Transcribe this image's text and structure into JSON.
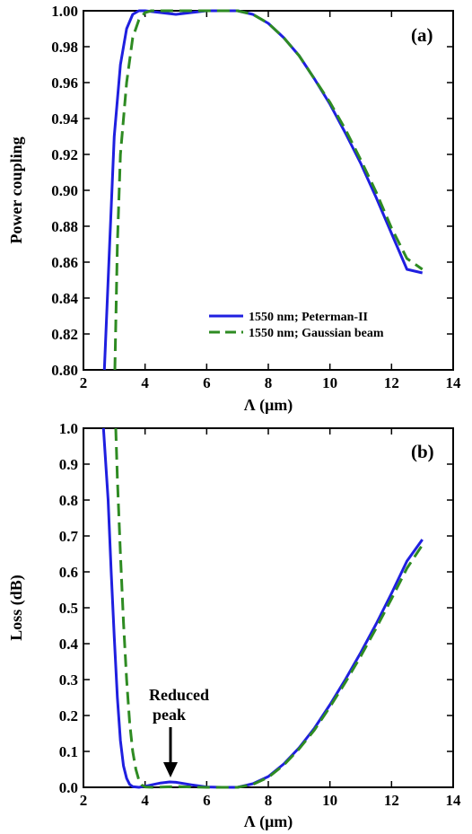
{
  "chart_data": [
    {
      "type": "line",
      "panel_label": "(a)",
      "xlabel": "Λ (μm)",
      "ylabel": "Power coupling",
      "xlim": [
        2,
        14
      ],
      "ylim": [
        0.8,
        1.0
      ],
      "x_ticks": [
        "2",
        "4",
        "6",
        "8",
        "10",
        "12",
        "14"
      ],
      "y_ticks": [
        "0.80",
        "0.82",
        "0.84",
        "0.86",
        "0.88",
        "0.90",
        "0.92",
        "0.94",
        "0.96",
        "0.98",
        "1.00"
      ],
      "grid": false,
      "legend_position": "bottom-right",
      "series": [
        {
          "name": "1550 nm; Peterman-II",
          "color": "#1f1fe0",
          "style": "solid",
          "x": [
            2.68,
            2.85,
            3.0,
            3.2,
            3.4,
            3.6,
            3.8,
            4.0,
            4.5,
            5.0,
            5.5,
            6.0,
            6.5,
            7.0,
            7.5,
            8.0,
            8.5,
            9.0,
            9.5,
            10.0,
            10.5,
            11.0,
            11.5,
            12.0,
            12.5,
            13.0
          ],
          "y": [
            0.8,
            0.87,
            0.93,
            0.97,
            0.99,
            0.998,
            1.0,
            1.0,
            0.999,
            0.998,
            0.999,
            1.0,
            1.0,
            1.0,
            0.998,
            0.993,
            0.985,
            0.975,
            0.962,
            0.948,
            0.932,
            0.915,
            0.896,
            0.876,
            0.856,
            0.854
          ]
        },
        {
          "name": "1550 nm; Gaussian beam",
          "color": "#2e8b22",
          "style": "dashed",
          "x": [
            3.02,
            3.1,
            3.2,
            3.4,
            3.6,
            3.8,
            4.0,
            4.2,
            4.5,
            5.0,
            5.5,
            6.0,
            6.5,
            7.0,
            7.5,
            8.0,
            8.5,
            9.0,
            9.5,
            10.0,
            10.5,
            11.0,
            11.5,
            12.0,
            12.5,
            13.0
          ],
          "y": [
            0.8,
            0.87,
            0.92,
            0.96,
            0.985,
            0.995,
            0.999,
            1.0,
            1.0,
            1.0,
            1.0,
            1.0,
            1.0,
            1.0,
            0.998,
            0.993,
            0.985,
            0.975,
            0.962,
            0.949,
            0.934,
            0.917,
            0.899,
            0.879,
            0.862,
            0.856
          ]
        }
      ]
    },
    {
      "type": "line",
      "panel_label": "(b)",
      "xlabel": "Λ (μm)",
      "ylabel": "Loss (dB)",
      "xlim": [
        2,
        14
      ],
      "ylim": [
        0.0,
        1.0
      ],
      "x_ticks": [
        "2",
        "4",
        "6",
        "8",
        "10",
        "12",
        "14"
      ],
      "y_ticks": [
        "0.0",
        "0.1",
        "0.2",
        "0.3",
        "0.4",
        "0.5",
        "0.6",
        "0.7",
        "0.8",
        "0.9",
        "1.0"
      ],
      "grid": false,
      "annotation": {
        "text_line1": "Reduced",
        "text_line2": "peak",
        "points_to_x": 4.8,
        "points_to_y": 0.015
      },
      "series": [
        {
          "name": "1550 nm; Peterman-II",
          "color": "#1f1fe0",
          "style": "solid",
          "x": [
            2.65,
            2.8,
            2.9,
            3.0,
            3.1,
            3.2,
            3.3,
            3.4,
            3.5,
            3.6,
            3.8,
            4.0,
            4.5,
            4.8,
            5.0,
            5.5,
            6.0,
            6.5,
            7.0,
            7.5,
            8.0,
            8.5,
            9.0,
            9.5,
            10.0,
            10.5,
            11.0,
            11.5,
            12.0,
            12.5,
            13.0
          ],
          "y": [
            1.0,
            0.8,
            0.6,
            0.42,
            0.25,
            0.13,
            0.06,
            0.025,
            0.008,
            0.002,
            0.0,
            0.003,
            0.012,
            0.015,
            0.014,
            0.007,
            0.001,
            0.0,
            0.0,
            0.01,
            0.03,
            0.065,
            0.11,
            0.165,
            0.23,
            0.3,
            0.375,
            0.455,
            0.54,
            0.63,
            0.69
          ]
        },
        {
          "name": "1550 nm; Gaussian beam",
          "color": "#2e8b22",
          "style": "dashed",
          "x": [
            3.05,
            3.1,
            3.2,
            3.3,
            3.4,
            3.5,
            3.6,
            3.7,
            3.8,
            3.9,
            4.0,
            4.3,
            4.6,
            5.0,
            5.5,
            6.0,
            6.5,
            7.0,
            7.5,
            8.0,
            8.5,
            9.0,
            9.5,
            10.0,
            10.5,
            11.0,
            11.5,
            12.0,
            12.5,
            13.0
          ],
          "y": [
            1.0,
            0.86,
            0.65,
            0.46,
            0.3,
            0.18,
            0.1,
            0.05,
            0.02,
            0.006,
            0.001,
            0.0,
            0.001,
            0.002,
            0.001,
            0.0,
            0.0,
            0.0,
            0.008,
            0.028,
            0.062,
            0.107,
            0.16,
            0.224,
            0.292,
            0.365,
            0.443,
            0.525,
            0.61,
            0.675
          ]
        }
      ]
    }
  ]
}
